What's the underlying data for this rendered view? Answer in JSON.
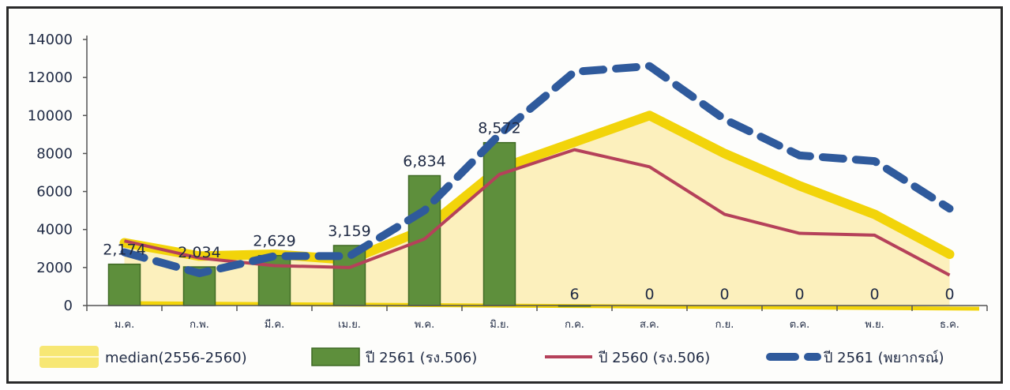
{
  "chart_data": {
    "type": "bar",
    "title": "",
    "xlabel": "",
    "ylabel": "",
    "ylim": [
      0,
      14000
    ],
    "yticks": [
      "0",
      "2000",
      "4000",
      "6000",
      "8000",
      "10000",
      "12000",
      "14000"
    ],
    "categories": [
      "ม.ค.",
      "ก.พ.",
      "มี.ค.",
      "เม.ย.",
      "พ.ค.",
      "มิ.ย.",
      "ก.ค.",
      "ส.ค.",
      "ก.ย.",
      "ต.ค.",
      "พ.ย.",
      "ธ.ค."
    ],
    "grid": false,
    "legend_position": "bottom",
    "series": [
      {
        "name": "median(2556-2560)",
        "kind": "area",
        "color": "#f2d40a",
        "values": [
          3300,
          2600,
          2700,
          2400,
          4000,
          7200,
          8600,
          10000,
          8000,
          6300,
          4800,
          2700
        ]
      },
      {
        "name": "ปี 2561 (รง.506)",
        "kind": "bar",
        "color": "#5e8f3c",
        "values": [
          2174,
          2034,
          2629,
          3159,
          6834,
          8572,
          6,
          0,
          0,
          0,
          0,
          0
        ],
        "labels": [
          "2,174",
          "2,034",
          "2,629",
          "3,159",
          "6,834",
          "8,572",
          "6",
          "0",
          "0",
          "0",
          "0",
          "0"
        ]
      },
      {
        "name": "ปี 2560 (รง.506)",
        "kind": "line",
        "color": "#b5415a",
        "values": [
          3400,
          2500,
          2100,
          2000,
          3500,
          6900,
          8200,
          7300,
          4800,
          3800,
          3700,
          1600
        ]
      },
      {
        "name": "ปี 2561 (พยากรณ์)",
        "kind": "dashed-line",
        "color": "#2f5a9c",
        "values": [
          2800,
          1700,
          2600,
          2600,
          5000,
          9000,
          12300,
          12600,
          9800,
          7900,
          7600,
          5100
        ]
      }
    ]
  }
}
